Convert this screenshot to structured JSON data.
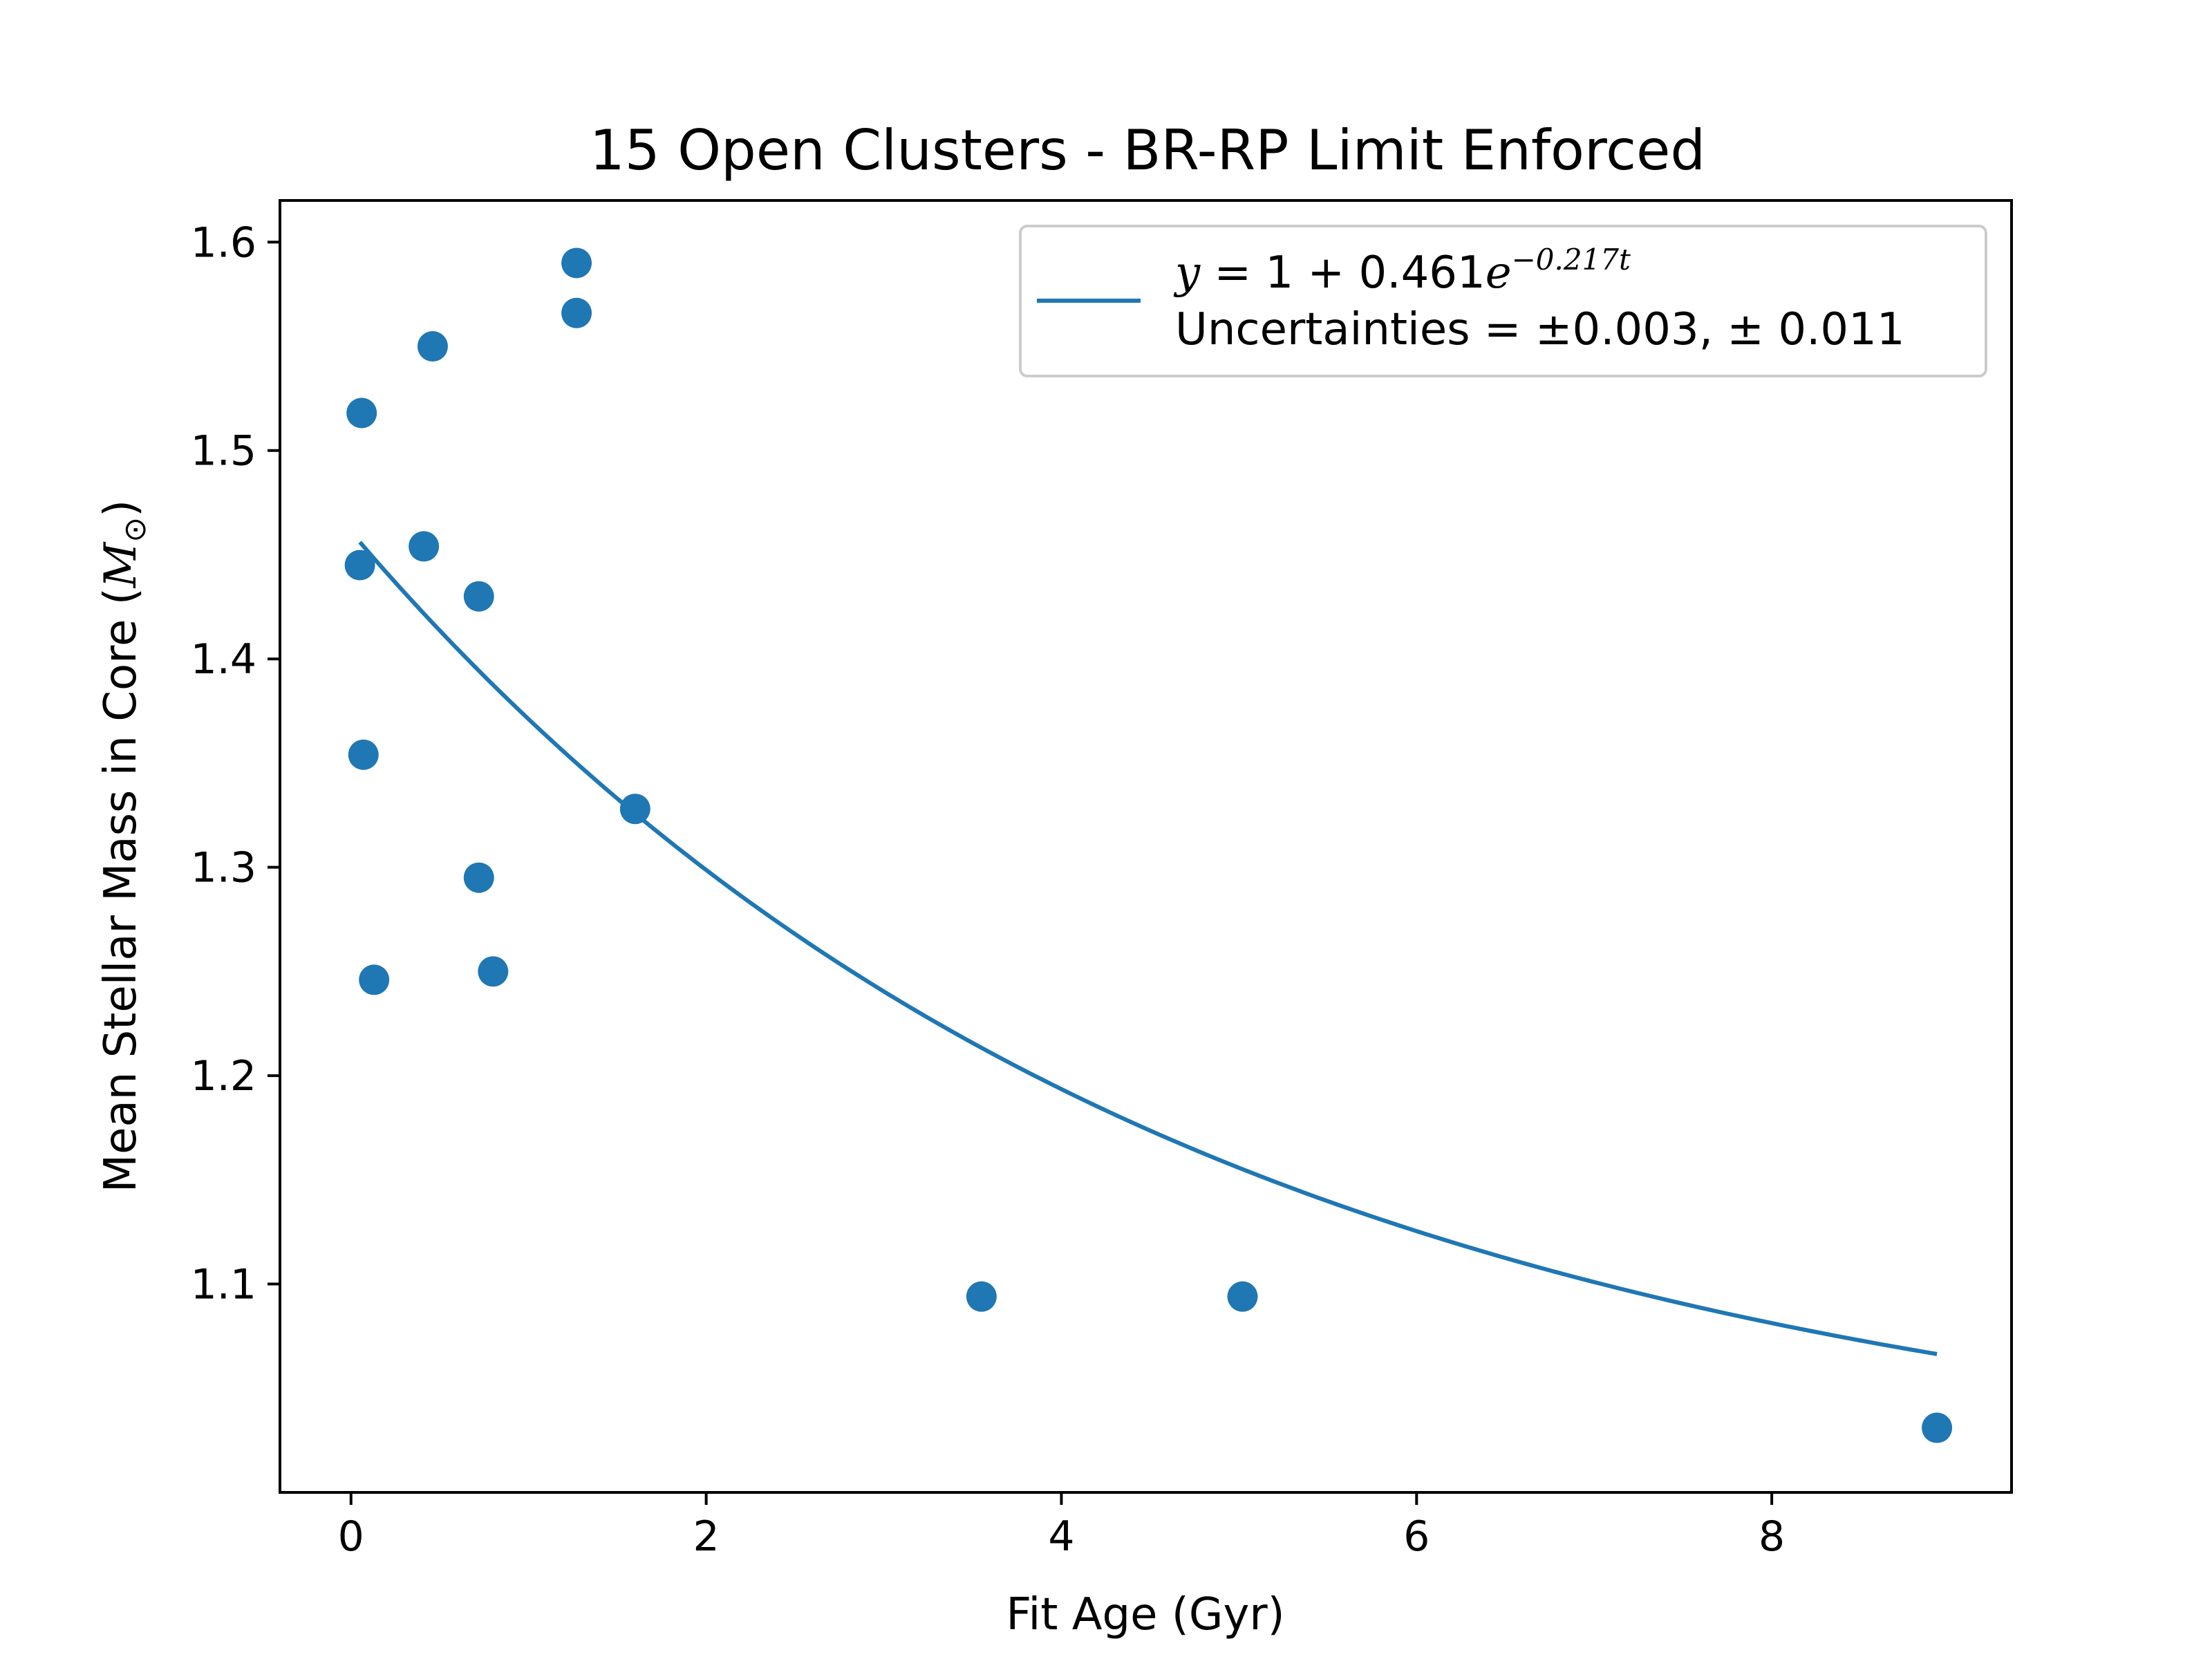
{
  "chart_data": {
    "type": "scatter",
    "title": "15 Open Clusters - BR-RP Limit Enforced",
    "xlabel": "Fit Age (Gyr)",
    "ylabel_main": "Mean Stellar Mass in Core (",
    "ylabel_symbol": "M",
    "ylabel_subscript": "⊙",
    "ylabel_close": ")",
    "xlim": [
      -0.4,
      9.35
    ],
    "ylim": [
      1.0,
      1.62
    ],
    "xticks": [
      0,
      2,
      4,
      6,
      8
    ],
    "xtick_labels": [
      "0",
      "2",
      "4",
      "6",
      "8"
    ],
    "yticks": [
      1.1,
      1.2,
      1.3,
      1.4,
      1.5,
      1.6
    ],
    "ytick_labels": [
      "1.1",
      "1.2",
      "1.3",
      "1.4",
      "1.5",
      "1.6"
    ],
    "grid": false,
    "legend_position": "top-right",
    "color": "#1f77b4",
    "points": [
      {
        "x": 0.06,
        "y": 1.518
      },
      {
        "x": 0.05,
        "y": 1.445
      },
      {
        "x": 0.07,
        "y": 1.354
      },
      {
        "x": 0.13,
        "y": 1.246
      },
      {
        "x": 0.41,
        "y": 1.454
      },
      {
        "x": 0.46,
        "y": 1.55
      },
      {
        "x": 0.72,
        "y": 1.43
      },
      {
        "x": 0.72,
        "y": 1.295
      },
      {
        "x": 0.8,
        "y": 1.25
      },
      {
        "x": 1.27,
        "y": 1.59
      },
      {
        "x": 1.27,
        "y": 1.566
      },
      {
        "x": 1.6,
        "y": 1.328
      },
      {
        "x": 3.55,
        "y": 1.094
      },
      {
        "x": 5.02,
        "y": 1.094
      },
      {
        "x": 8.93,
        "y": 1.031
      }
    ],
    "fit": {
      "a": 1,
      "b": 0.461,
      "k": 0.217,
      "x_start": 0.05,
      "x_end": 8.93
    },
    "legend": {
      "equation_lhs": "y",
      "equation_eq": " = 1 + 0.461",
      "equation_e": "e",
      "equation_exp": "−0.217t",
      "uncertainties": "Uncertainties = ±0.003, ± 0.011"
    }
  }
}
